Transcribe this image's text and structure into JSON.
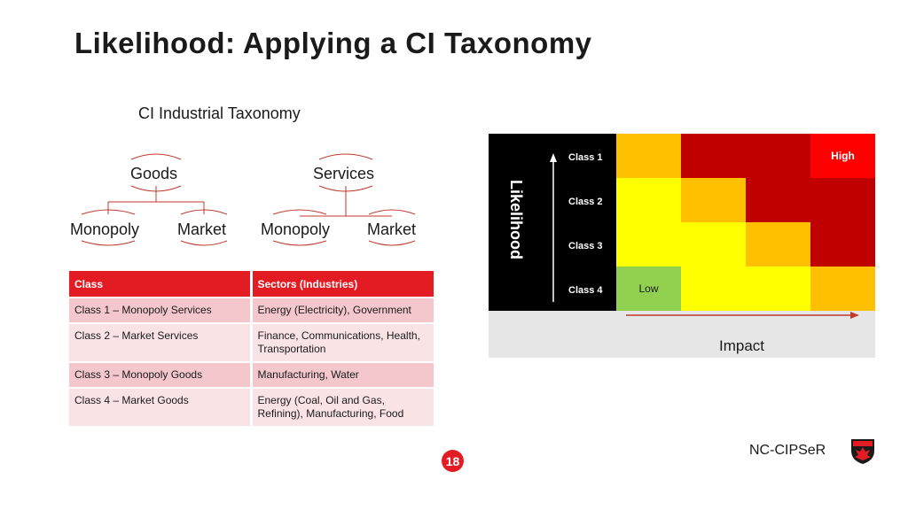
{
  "title": "Likelihood: Applying a CI Taxonomy",
  "taxonomy": {
    "heading": "CI Industrial Taxonomy",
    "goods": "Goods",
    "services": "Services",
    "goods_monopoly": "Monopoly",
    "goods_market": "Market",
    "services_monopoly": "Monopoly",
    "services_market": "Market"
  },
  "table": {
    "headers": [
      "Class",
      "Sectors (Industries)"
    ],
    "rows": [
      [
        "Class 1 – Monopoly Services",
        "Energy (Electricity), Government"
      ],
      [
        "Class 2 – Market Services",
        "Finance, Communications, Health, Transportation"
      ],
      [
        "Class 3 – Monopoly Goods",
        "Manufacturing, Water"
      ],
      [
        "Class 4 – Market Goods",
        "Energy (Coal, Oil and Gas, Refining), Manufacturing, Food"
      ]
    ]
  },
  "risk_matrix": {
    "axis_y": "Likelihood",
    "axis_x": "Impact",
    "classes": [
      "Class 1",
      "Class 2",
      "Class 3",
      "Class 4"
    ],
    "high_label": "High",
    "low_label": "Low",
    "colors": {
      "orange": "#ffc000",
      "red": "#c00000",
      "bright_red": "#ff0000",
      "yellow": "#ffff00",
      "green": "#92d050"
    },
    "grid": [
      [
        "orange",
        "red",
        "red",
        "bright_red"
      ],
      [
        "yellow",
        "orange",
        "red",
        "red"
      ],
      [
        "yellow",
        "yellow",
        "orange",
        "red"
      ],
      [
        "green",
        "yellow",
        "yellow",
        "orange"
      ]
    ]
  },
  "page_number": "18",
  "brand": "NC-CIPSeR"
}
